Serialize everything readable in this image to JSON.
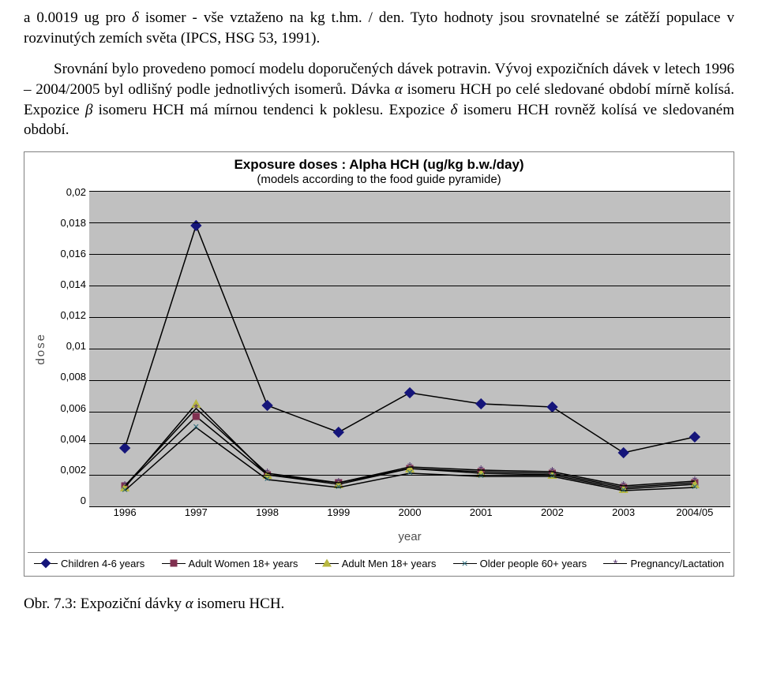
{
  "para1_parts": [
    {
      "text": "a 0.0019 ug pro "
    },
    {
      "text": "δ",
      "italic": true
    },
    {
      "text": " isomer - vše vztaženo na kg t.hm. / den. Tyto hodnoty jsou srovnatelné se zátěží populace v rozvinutých zemích světa (IPCS, HSG 53, 1991)."
    }
  ],
  "para2_parts": [
    {
      "text": "Srovnání bylo provedeno pomocí modelu doporučených dávek potravin. Vývoj expozičních dávek v letech 1996 – 2004/2005 byl odlišný podle jednotlivých isomerů. Dávka "
    },
    {
      "text": "α",
      "italic": true
    },
    {
      "text": " isomeru HCH po celé sledované období mírně kolísá. Expozice "
    },
    {
      "text": "β",
      "italic": true
    },
    {
      "text": " isomeru HCH má mírnou tendenci k poklesu. Expozice "
    },
    {
      "text": "δ",
      "italic": true
    },
    {
      "text": " isomeru HCH rovněž kolísá ve sledovaném období."
    }
  ],
  "chart": {
    "title": "Exposure doses : Alpha HCH (ug/kg b.w./day)",
    "subtitle": "(models according to the food guide pyramide)",
    "ylabel": "dose",
    "xlabel": "year",
    "categories": [
      "1996",
      "1997",
      "1998",
      "1999",
      "2000",
      "2001",
      "2002",
      "2003",
      "2004/05"
    ],
    "ylim": [
      0,
      0.02
    ],
    "yticks": [
      "0,02",
      "0,018",
      "0,016",
      "0,014",
      "0,012",
      "0,01",
      "0,008",
      "0,006",
      "0,004",
      "0,002",
      "0"
    ],
    "plot_bg": "#c0c0c0",
    "grid_color": "#000000",
    "line_color": "#000000",
    "series": [
      {
        "name": "Children 4-6 years",
        "marker": "diamond",
        "color": "#15157a",
        "values": [
          0.0037,
          0.0178,
          0.0064,
          0.0047,
          0.0072,
          0.0065,
          0.0063,
          0.0034,
          0.0044
        ]
      },
      {
        "name": "Adult Women 18+ years",
        "marker": "square",
        "color": "#803050",
        "values": [
          0.0013,
          0.0057,
          0.002,
          0.0015,
          0.0024,
          0.0022,
          0.0021,
          0.0012,
          0.0015
        ]
      },
      {
        "name": "Adult Men 18+ years",
        "marker": "triangle",
        "color": "#b8b840",
        "values": [
          0.0012,
          0.0065,
          0.002,
          0.0014,
          0.0024,
          0.0021,
          0.002,
          0.0011,
          0.0014
        ]
      },
      {
        "name": "Older people 60+ years",
        "marker": "x",
        "color": "#2a6a7a",
        "values": [
          0.001,
          0.005,
          0.0017,
          0.0012,
          0.0021,
          0.0019,
          0.0019,
          0.001,
          0.0012
        ]
      },
      {
        "name": "Pregnancy/Lactation",
        "marker": "asterisk",
        "color": "#5a3870",
        "values": [
          0.0013,
          0.0062,
          0.0021,
          0.0015,
          0.0025,
          0.0023,
          0.0022,
          0.0013,
          0.0016
        ]
      }
    ]
  },
  "caption_parts": [
    {
      "text": "Obr. 7.3: Expoziční dávky "
    },
    {
      "text": "α",
      "italic": true
    },
    {
      "text": " isomeru HCH."
    }
  ]
}
